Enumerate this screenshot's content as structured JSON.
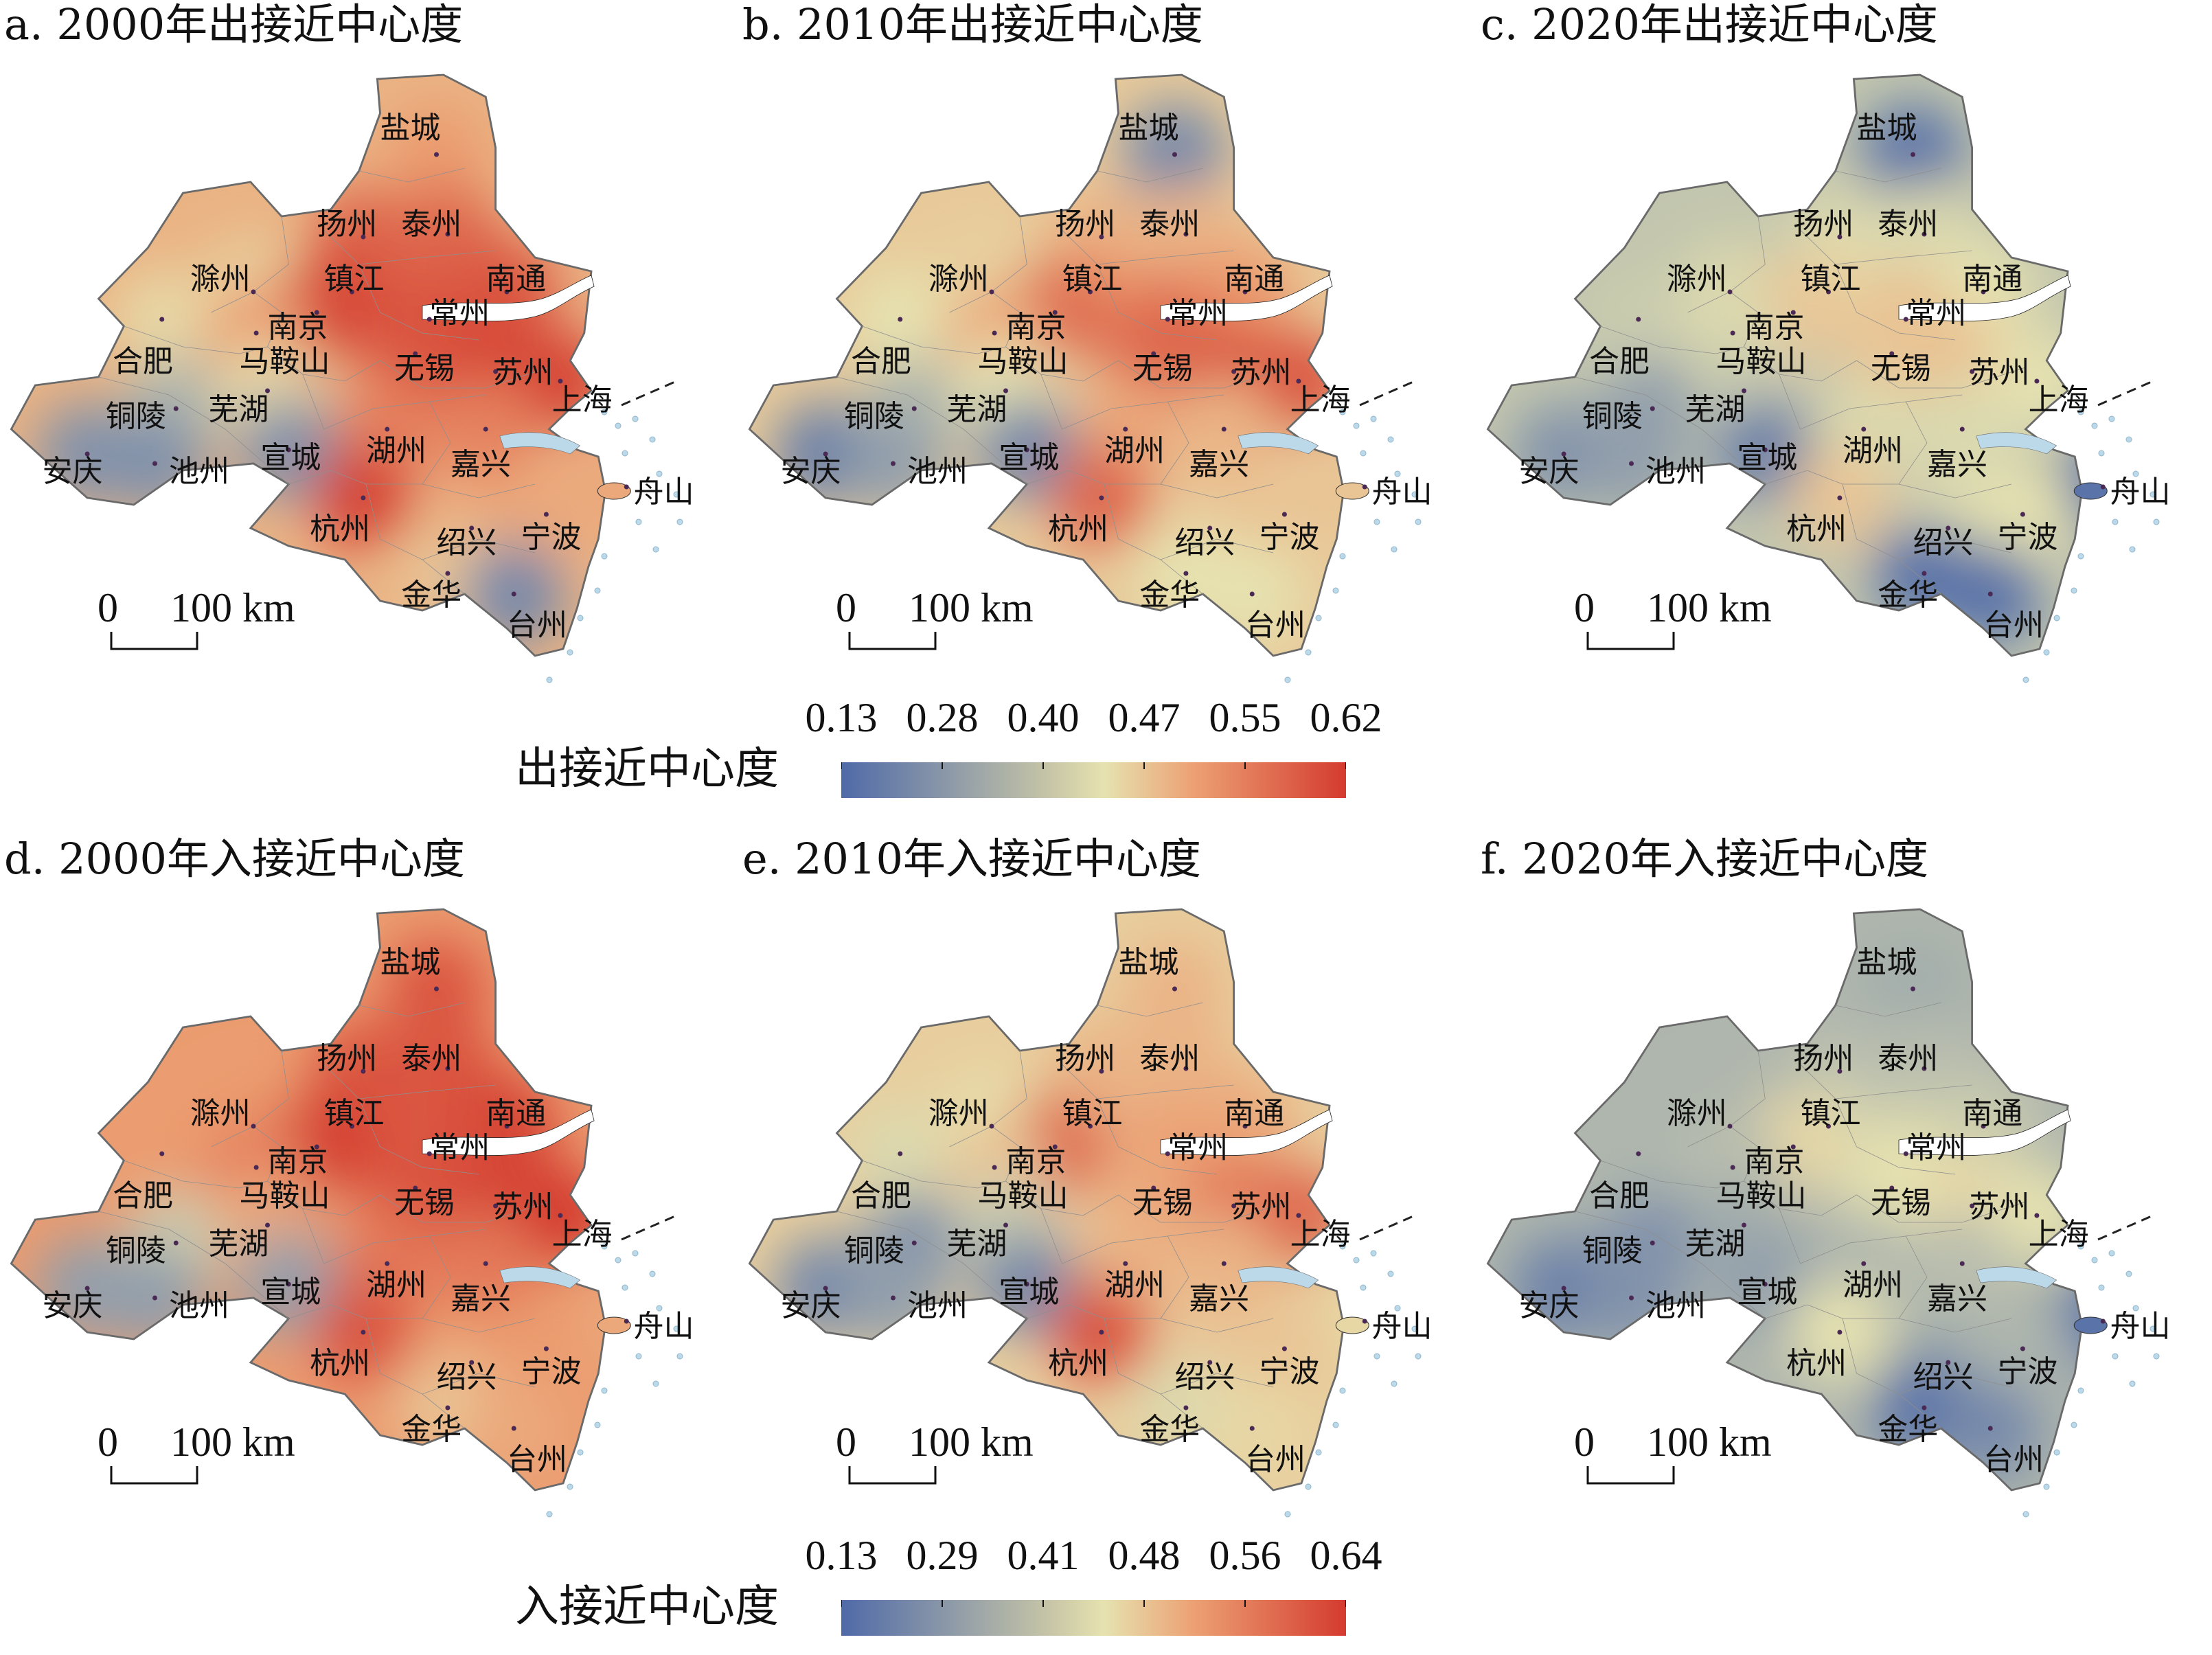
{
  "panels": [
    {
      "title": "a. 2000年出接近中心度",
      "scale": {
        "zero": "0",
        "distance": "100 km"
      }
    },
    {
      "title": "b. 2010年出接近中心度",
      "scale": {
        "zero": "0",
        "distance": "100 km"
      }
    },
    {
      "title": "c. 2020年出接近中心度",
      "scale": {
        "zero": "0",
        "distance": "100 km"
      }
    },
    {
      "title": "d. 2000年入接近中心度",
      "scale": {
        "zero": "0",
        "distance": "100 km"
      }
    },
    {
      "title": "e. 2010年入接近中心度",
      "scale": {
        "zero": "0",
        "distance": "100 km"
      }
    },
    {
      "title": "f. 2020年入接近中心度",
      "scale": {
        "zero": "0",
        "distance": "100 km"
      }
    }
  ],
  "cities": [
    "盐城",
    "扬州",
    "泰州",
    "滁州",
    "镇江",
    "南通",
    "南京",
    "常州",
    "合肥",
    "马鞍山",
    "无锡",
    "苏州",
    "上海",
    "铜陵",
    "芜湖",
    "安庆",
    "池州",
    "宣城",
    "湖州",
    "嘉兴",
    "舟山",
    "杭州",
    "绍兴",
    "宁波",
    "金华",
    "台州"
  ],
  "legends": [
    {
      "title": "出接近中心度",
      "ticks": [
        "0.13",
        "0.28",
        "0.40",
        "0.47",
        "0.55",
        "0.62"
      ]
    },
    {
      "title": "入接近中心度",
      "ticks": [
        "0.13",
        "0.29",
        "0.41",
        "0.48",
        "0.56",
        "0.64"
      ]
    }
  ],
  "colors": {
    "low": "#4f6aa8",
    "mid": "#e6e2b0",
    "high": "#d43b2f",
    "water": "#bcd9ea",
    "border": "#6a6a6a"
  },
  "values": {
    "a": {
      "盐城": 0.52,
      "扬州": 0.58,
      "泰州": 0.58,
      "滁州": 0.42,
      "镇江": 0.6,
      "南通": 0.6,
      "南京": 0.62,
      "常州": 0.6,
      "合肥": 0.42,
      "马鞍山": 0.52,
      "无锡": 0.6,
      "苏州": 0.62,
      "上海": 0.62,
      "铜陵": 0.3,
      "芜湖": 0.42,
      "安庆": 0.22,
      "池州": 0.22,
      "宣城": 0.22,
      "湖州": 0.55,
      "嘉兴": 0.55,
      "舟山": 0.5,
      "杭州": 0.62,
      "绍兴": 0.5,
      "宁波": 0.5,
      "金华": 0.45,
      "台州": 0.2
    },
    "b": {
      "盐城": 0.2,
      "扬州": 0.48,
      "泰州": 0.48,
      "滁州": 0.42,
      "镇江": 0.52,
      "南通": 0.52,
      "南京": 0.58,
      "常州": 0.56,
      "合肥": 0.4,
      "马鞍山": 0.5,
      "无锡": 0.58,
      "苏州": 0.6,
      "上海": 0.6,
      "铜陵": 0.3,
      "芜湖": 0.4,
      "安庆": 0.18,
      "池州": 0.25,
      "宣城": 0.2,
      "湖州": 0.5,
      "嘉兴": 0.48,
      "舟山": 0.45,
      "杭州": 0.58,
      "绍兴": 0.45,
      "宁波": 0.45,
      "金华": 0.4,
      "台州": 0.4
    },
    "c": {
      "盐城": 0.15,
      "扬州": 0.38,
      "泰州": 0.38,
      "滁州": 0.38,
      "镇江": 0.42,
      "南通": 0.4,
      "南京": 0.45,
      "常州": 0.46,
      "合肥": 0.35,
      "马鞍山": 0.38,
      "无锡": 0.45,
      "苏州": 0.46,
      "上海": 0.4,
      "铜陵": 0.25,
      "芜湖": 0.35,
      "安庆": 0.22,
      "池州": 0.25,
      "宣城": 0.18,
      "湖州": 0.38,
      "嘉兴": 0.38,
      "舟山": 0.15,
      "杭州": 0.45,
      "绍兴": 0.38,
      "宁波": 0.4,
      "金华": 0.15,
      "台州": 0.15
    },
    "d": {
      "盐城": 0.6,
      "扬州": 0.6,
      "泰州": 0.6,
      "滁州": 0.52,
      "镇江": 0.6,
      "南通": 0.62,
      "南京": 0.64,
      "常州": 0.6,
      "合肥": 0.52,
      "马鞍山": 0.55,
      "无锡": 0.6,
      "苏州": 0.62,
      "上海": 0.64,
      "铜陵": 0.35,
      "芜湖": 0.5,
      "安庆": 0.25,
      "池州": 0.25,
      "宣城": 0.25,
      "湖州": 0.56,
      "嘉兴": 0.56,
      "舟山": 0.5,
      "杭州": 0.6,
      "绍兴": 0.52,
      "宁波": 0.52,
      "金华": 0.45,
      "台州": 0.5
    },
    "e": {
      "盐城": 0.48,
      "扬州": 0.48,
      "泰州": 0.48,
      "滁州": 0.4,
      "镇江": 0.48,
      "南通": 0.5,
      "南京": 0.58,
      "常州": 0.52,
      "合肥": 0.38,
      "马鞍山": 0.45,
      "无锡": 0.5,
      "苏州": 0.56,
      "上海": 0.58,
      "铜陵": 0.22,
      "芜湖": 0.35,
      "安庆": 0.2,
      "池州": 0.25,
      "宣城": 0.2,
      "湖州": 0.48,
      "嘉兴": 0.48,
      "舟山": 0.42,
      "杭州": 0.6,
      "绍兴": 0.45,
      "宁波": 0.45,
      "金华": 0.38,
      "台州": 0.42
    },
    "f": {
      "盐城": 0.28,
      "扬州": 0.32,
      "泰州": 0.32,
      "滁州": 0.3,
      "镇江": 0.36,
      "南通": 0.35,
      "南京": 0.42,
      "常州": 0.38,
      "合肥": 0.3,
      "马鞍山": 0.32,
      "无锡": 0.4,
      "苏州": 0.42,
      "上海": 0.4,
      "铜陵": 0.22,
      "芜湖": 0.28,
      "安庆": 0.18,
      "池州": 0.22,
      "宣城": 0.25,
      "湖州": 0.3,
      "嘉兴": 0.32,
      "舟山": 0.15,
      "杭州": 0.4,
      "绍兴": 0.28,
      "宁波": 0.3,
      "金华": 0.15,
      "台州": 0.2
    }
  }
}
